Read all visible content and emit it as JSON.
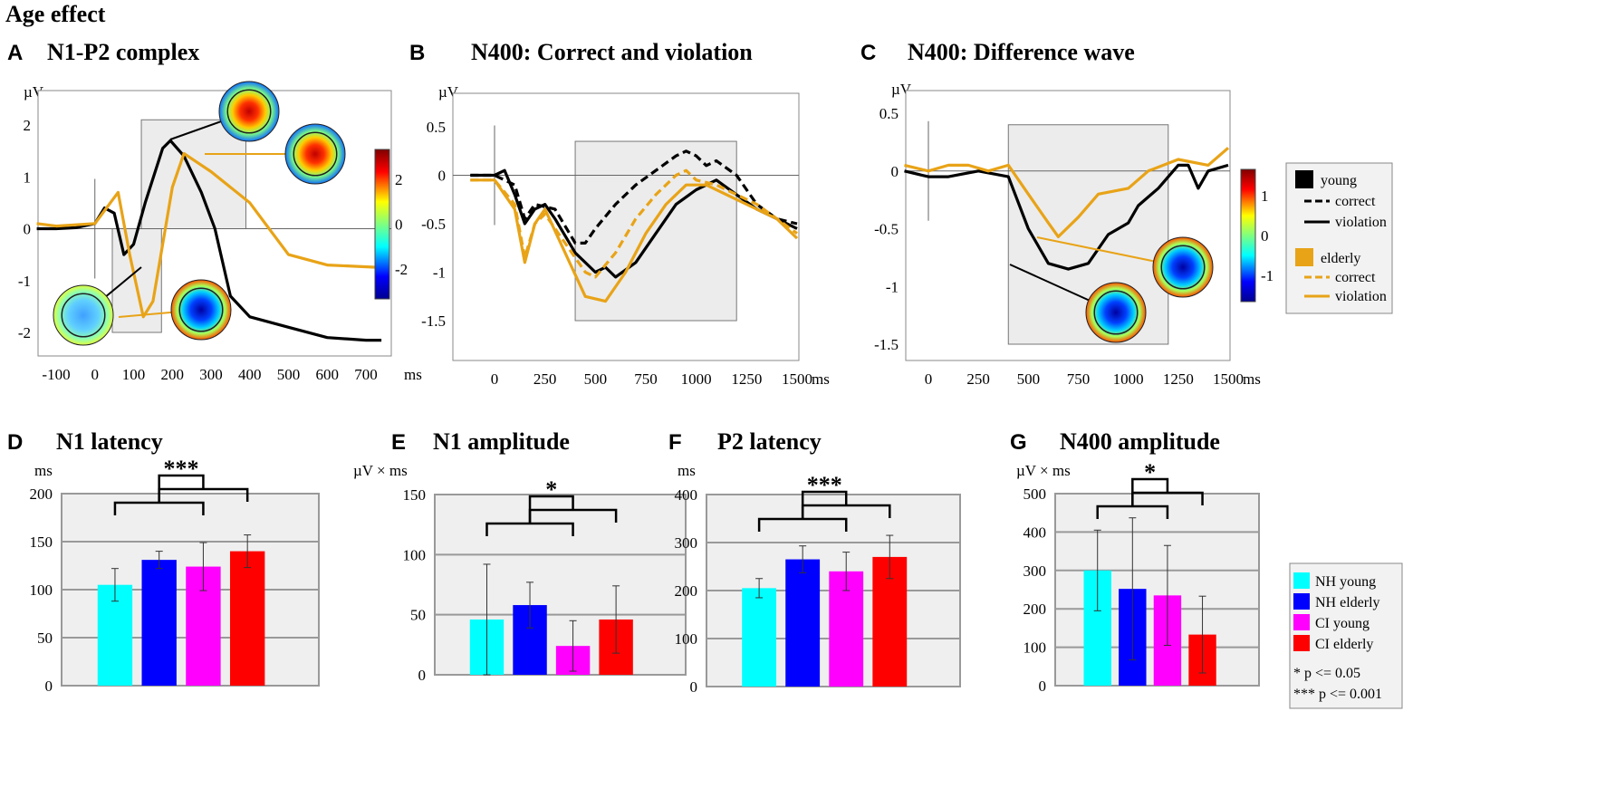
{
  "title": "Age effect",
  "colors": {
    "young": "#000000",
    "elderly": "#e8a317",
    "NH young": "#00ffff",
    "NH elderly": "#0000ff",
    "CI young": "#ff00ff",
    "CI elderly": "#ff0000",
    "shade": "#ececec"
  },
  "erp_legend": {
    "young": "young",
    "elderly": "elderly",
    "correct": "correct",
    "violation": "violation"
  },
  "bar_legend": {
    "items": [
      "NH young",
      "NH elderly",
      "CI young",
      "CI elderly"
    ],
    "sig1": "* p <= 0.05",
    "sig3": "*** p <= 0.001"
  },
  "chart_data": [
    {
      "letter": "A",
      "type": "line",
      "title": "N1-P2 complex",
      "ylabel": "µV",
      "xlabel": "ms",
      "xlim": [
        -150,
        750
      ],
      "ylim": [
        -2.4,
        2.6
      ],
      "xticks": [
        -100,
        0,
        100,
        200,
        300,
        400,
        500,
        600,
        700
      ],
      "yticks": [
        -2,
        -1,
        0,
        1,
        2
      ],
      "colorbar_ticks": [
        2,
        0,
        -2
      ],
      "series": [
        {
          "name": "young",
          "style": "solid",
          "points": [
            [
              -150,
              0
            ],
            [
              -100,
              0
            ],
            [
              -50,
              0.02
            ],
            [
              0,
              0.1
            ],
            [
              25,
              0.4
            ],
            [
              50,
              0.3
            ],
            [
              75,
              -0.5
            ],
            [
              100,
              -0.3
            ],
            [
              130,
              0.5
            ],
            [
              175,
              1.55
            ],
            [
              195,
              1.7
            ],
            [
              230,
              1.4
            ],
            [
              275,
              0.7
            ],
            [
              310,
              0
            ],
            [
              350,
              -1.3
            ],
            [
              400,
              -1.7
            ],
            [
              500,
              -1.9
            ],
            [
              600,
              -2.1
            ],
            [
              700,
              -2.15
            ],
            [
              740,
              -2.15
            ]
          ]
        },
        {
          "name": "elderly",
          "style": "solid",
          "points": [
            [
              -150,
              0.1
            ],
            [
              -100,
              0.05
            ],
            [
              0,
              0.1
            ],
            [
              50,
              0.6
            ],
            [
              60,
              0.7
            ],
            [
              90,
              -0.5
            ],
            [
              125,
              -1.7
            ],
            [
              150,
              -1.4
            ],
            [
              200,
              0.8
            ],
            [
              230,
              1.45
            ],
            [
              260,
              1.3
            ],
            [
              300,
              1.1
            ],
            [
              400,
              0.5
            ],
            [
              450,
              0
            ],
            [
              500,
              -0.5
            ],
            [
              600,
              -0.7
            ],
            [
              740,
              -0.75
            ]
          ]
        }
      ],
      "windows": [
        [
          120,
          390,
          0,
          2.1
        ],
        [
          45,
          172,
          -2,
          0
        ]
      ]
    },
    {
      "letter": "B",
      "type": "line",
      "title": "N400: Correct and violation",
      "ylabel": "µV",
      "xlabel": "ms",
      "xlim": [
        -120,
        1500
      ],
      "ylim": [
        -1.9,
        0.75
      ],
      "xticks": [
        0,
        250,
        500,
        750,
        1000,
        1250,
        1500
      ],
      "yticks": [
        -1.5,
        -1,
        -0.5,
        0,
        0.5
      ],
      "series": [
        {
          "name": "young correct",
          "group": "young",
          "style": "dash",
          "points": [
            [
              -120,
              0
            ],
            [
              0,
              0
            ],
            [
              100,
              -0.1
            ],
            [
              150,
              -0.45
            ],
            [
              200,
              -0.3
            ],
            [
              300,
              -0.35
            ],
            [
              400,
              -0.7
            ],
            [
              450,
              -0.7
            ],
            [
              500,
              -0.55
            ],
            [
              600,
              -0.3
            ],
            [
              700,
              -0.1
            ],
            [
              800,
              0.05
            ],
            [
              900,
              0.2
            ],
            [
              950,
              0.25
            ],
            [
              1000,
              0.2
            ],
            [
              1050,
              0.1
            ],
            [
              1100,
              0.15
            ],
            [
              1200,
              0
            ],
            [
              1300,
              -0.3
            ],
            [
              1400,
              -0.45
            ],
            [
              1500,
              -0.5
            ]
          ]
        },
        {
          "name": "young violation",
          "group": "young",
          "style": "solid",
          "points": [
            [
              -120,
              0
            ],
            [
              0,
              0
            ],
            [
              50,
              0.05
            ],
            [
              100,
              -0.2
            ],
            [
              150,
              -0.5
            ],
            [
              200,
              -0.35
            ],
            [
              250,
              -0.3
            ],
            [
              300,
              -0.45
            ],
            [
              400,
              -0.8
            ],
            [
              500,
              -1.0
            ],
            [
              550,
              -0.95
            ],
            [
              600,
              -1.05
            ],
            [
              700,
              -0.9
            ],
            [
              800,
              -0.6
            ],
            [
              900,
              -0.3
            ],
            [
              1000,
              -0.15
            ],
            [
              1100,
              -0.05
            ],
            [
              1200,
              -0.2
            ],
            [
              1300,
              -0.35
            ],
            [
              1400,
              -0.45
            ],
            [
              1500,
              -0.55
            ]
          ]
        },
        {
          "name": "elderly correct",
          "group": "elderly",
          "style": "dash",
          "points": [
            [
              -120,
              -0.05
            ],
            [
              0,
              -0.05
            ],
            [
              100,
              -0.3
            ],
            [
              150,
              -0.85
            ],
            [
              200,
              -0.5
            ],
            [
              250,
              -0.4
            ],
            [
              350,
              -0.7
            ],
            [
              450,
              -1.0
            ],
            [
              500,
              -1.05
            ],
            [
              600,
              -0.8
            ],
            [
              700,
              -0.45
            ],
            [
              800,
              -0.2
            ],
            [
              900,
              0
            ],
            [
              950,
              0.05
            ],
            [
              1000,
              -0.05
            ],
            [
              1100,
              -0.1
            ],
            [
              1200,
              -0.2
            ],
            [
              1300,
              -0.3
            ],
            [
              1400,
              -0.45
            ],
            [
              1500,
              -0.6
            ]
          ]
        },
        {
          "name": "elderly violation",
          "group": "elderly",
          "style": "solid",
          "points": [
            [
              -120,
              -0.05
            ],
            [
              0,
              -0.05
            ],
            [
              100,
              -0.35
            ],
            [
              150,
              -0.9
            ],
            [
              200,
              -0.5
            ],
            [
              250,
              -0.35
            ],
            [
              350,
              -0.8
            ],
            [
              450,
              -1.25
            ],
            [
              550,
              -1.3
            ],
            [
              650,
              -1.0
            ],
            [
              750,
              -0.6
            ],
            [
              850,
              -0.3
            ],
            [
              950,
              -0.1
            ],
            [
              1050,
              -0.1
            ],
            [
              1150,
              -0.2
            ],
            [
              1300,
              -0.35
            ],
            [
              1400,
              -0.45
            ],
            [
              1500,
              -0.65
            ]
          ]
        }
      ],
      "windows": [
        [
          400,
          1200,
          -1.5,
          0.35
        ]
      ]
    },
    {
      "letter": "C",
      "type": "line",
      "title": "N400: Difference wave",
      "ylabel": "µV",
      "xlabel": "ms",
      "xlim": [
        -120,
        1500
      ],
      "ylim": [
        -1.65,
        0.65
      ],
      "xticks": [
        0,
        250,
        500,
        750,
        1000,
        1250,
        1500
      ],
      "yticks": [
        -1.5,
        -1,
        -0.5,
        0,
        0.5
      ],
      "colorbar_ticks": [
        1,
        0,
        -1
      ],
      "series": [
        {
          "name": "young",
          "style": "solid",
          "points": [
            [
              -120,
              0
            ],
            [
              0,
              -0.05
            ],
            [
              100,
              -0.05
            ],
            [
              250,
              0
            ],
            [
              400,
              -0.05
            ],
            [
              500,
              -0.5
            ],
            [
              600,
              -0.8
            ],
            [
              700,
              -0.85
            ],
            [
              800,
              -0.8
            ],
            [
              900,
              -0.55
            ],
            [
              1000,
              -0.45
            ],
            [
              1050,
              -0.3
            ],
            [
              1150,
              -0.15
            ],
            [
              1250,
              0.05
            ],
            [
              1300,
              0.05
            ],
            [
              1350,
              -0.15
            ],
            [
              1400,
              0
            ],
            [
              1500,
              0.05
            ]
          ]
        },
        {
          "name": "elderly",
          "style": "solid",
          "points": [
            [
              -120,
              0.05
            ],
            [
              0,
              0
            ],
            [
              100,
              0.05
            ],
            [
              200,
              0.05
            ],
            [
              300,
              0
            ],
            [
              400,
              0.05
            ],
            [
              500,
              -0.2
            ],
            [
              600,
              -0.45
            ],
            [
              650,
              -0.57
            ],
            [
              750,
              -0.4
            ],
            [
              850,
              -0.2
            ],
            [
              1000,
              -0.15
            ],
            [
              1100,
              0
            ],
            [
              1250,
              0.1
            ],
            [
              1400,
              0.05
            ],
            [
              1500,
              0.2
            ]
          ]
        }
      ],
      "windows": [
        [
          400,
          1200,
          -1.5,
          0.4
        ]
      ]
    },
    {
      "letter": "D",
      "type": "bar",
      "title": "N1 latency",
      "ylabel": "ms",
      "ylim": [
        0,
        200
      ],
      "yticks": [
        0,
        50,
        100,
        150,
        200
      ],
      "categories": [
        "NH young",
        "NH elderly",
        "CI young",
        "CI elderly"
      ],
      "values": [
        105,
        131,
        124,
        140
      ],
      "errors": [
        17,
        9,
        25,
        17
      ],
      "sig": "***"
    },
    {
      "letter": "E",
      "type": "bar",
      "title": "N1 amplitude",
      "ylabel": "µV × ms",
      "ylim": [
        0,
        150
      ],
      "yticks": [
        0,
        50,
        100,
        150
      ],
      "categories": [
        "NH young",
        "NH elderly",
        "CI young",
        "CI elderly"
      ],
      "values": [
        46,
        58,
        24,
        46
      ],
      "errors": [
        46,
        19,
        21,
        28
      ],
      "sig": "*"
    },
    {
      "letter": "F",
      "type": "bar",
      "title": "P2 latency",
      "ylabel": "ms",
      "ylim": [
        0,
        400
      ],
      "yticks": [
        0,
        100,
        200,
        300,
        400
      ],
      "categories": [
        "NH young",
        "NH elderly",
        "CI young",
        "CI elderly"
      ],
      "values": [
        205,
        265,
        240,
        270
      ],
      "errors": [
        20,
        28,
        40,
        45
      ],
      "sig": "***"
    },
    {
      "letter": "G",
      "type": "bar",
      "title": "N400 amplitude",
      "ylabel": "µV × ms",
      "ylim": [
        0,
        500
      ],
      "yticks": [
        0,
        100,
        200,
        300,
        400,
        500
      ],
      "categories": [
        "NH young",
        "NH elderly",
        "CI young",
        "CI elderly"
      ],
      "values": [
        300,
        252,
        235,
        133
      ],
      "errors": [
        105,
        185,
        130,
        100
      ],
      "sig": "*"
    }
  ]
}
